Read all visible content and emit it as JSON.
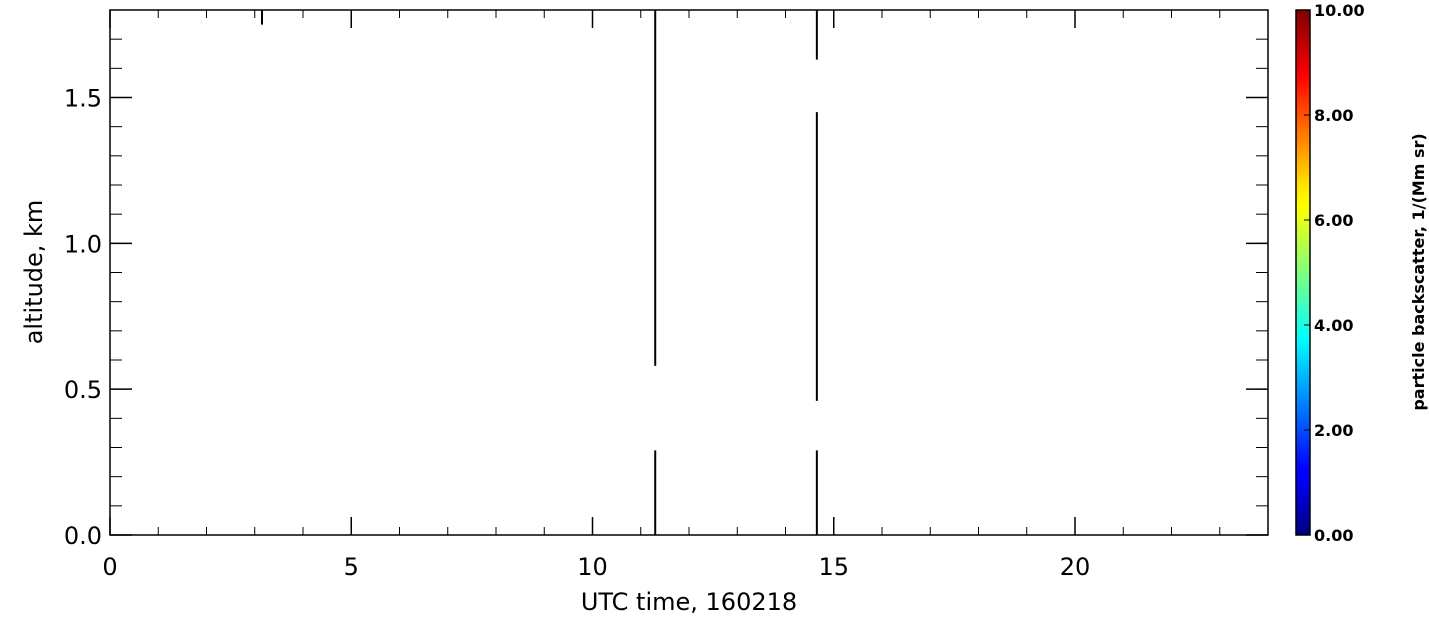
{
  "chart_data": {
    "type": "heatmap",
    "title": "",
    "xlabel": "UTC time, 160218",
    "ylabel": "altitude, km",
    "xlim": [
      0,
      24
    ],
    "ylim": [
      0,
      1.8
    ],
    "x_ticks": [
      0,
      5,
      10,
      15,
      20
    ],
    "x_tick_labels": [
      "0",
      "5",
      "10",
      "15",
      "20"
    ],
    "y_ticks": [
      0.0,
      0.5,
      1.0,
      1.5
    ],
    "y_tick_labels": [
      "0.0",
      "0.5",
      "1.0",
      "1.5"
    ],
    "x_minor_step": 1,
    "y_minor_step": 0.1,
    "vertical_lines": [
      {
        "x": 3.15,
        "segments": [
          [
            1.75,
            1.8
          ]
        ]
      },
      {
        "x": 11.3,
        "segments": [
          [
            0.0,
            0.29
          ],
          [
            0.58,
            1.8
          ]
        ]
      },
      {
        "x": 14.65,
        "segments": [
          [
            0.0,
            0.29
          ],
          [
            0.46,
            1.45
          ],
          [
            1.63,
            1.8
          ]
        ]
      }
    ],
    "colorbar": {
      "label": "particle backscatter, 1/(Mm sr)",
      "range": [
        0,
        10
      ],
      "tick_values": [
        0,
        2,
        4,
        6,
        8,
        10
      ],
      "tick_labels": [
        "0.00",
        "2.00",
        "4.00",
        "6.00",
        "8.00",
        "10.00"
      ],
      "colormap": "jet"
    },
    "grid": false,
    "legend": "none"
  }
}
